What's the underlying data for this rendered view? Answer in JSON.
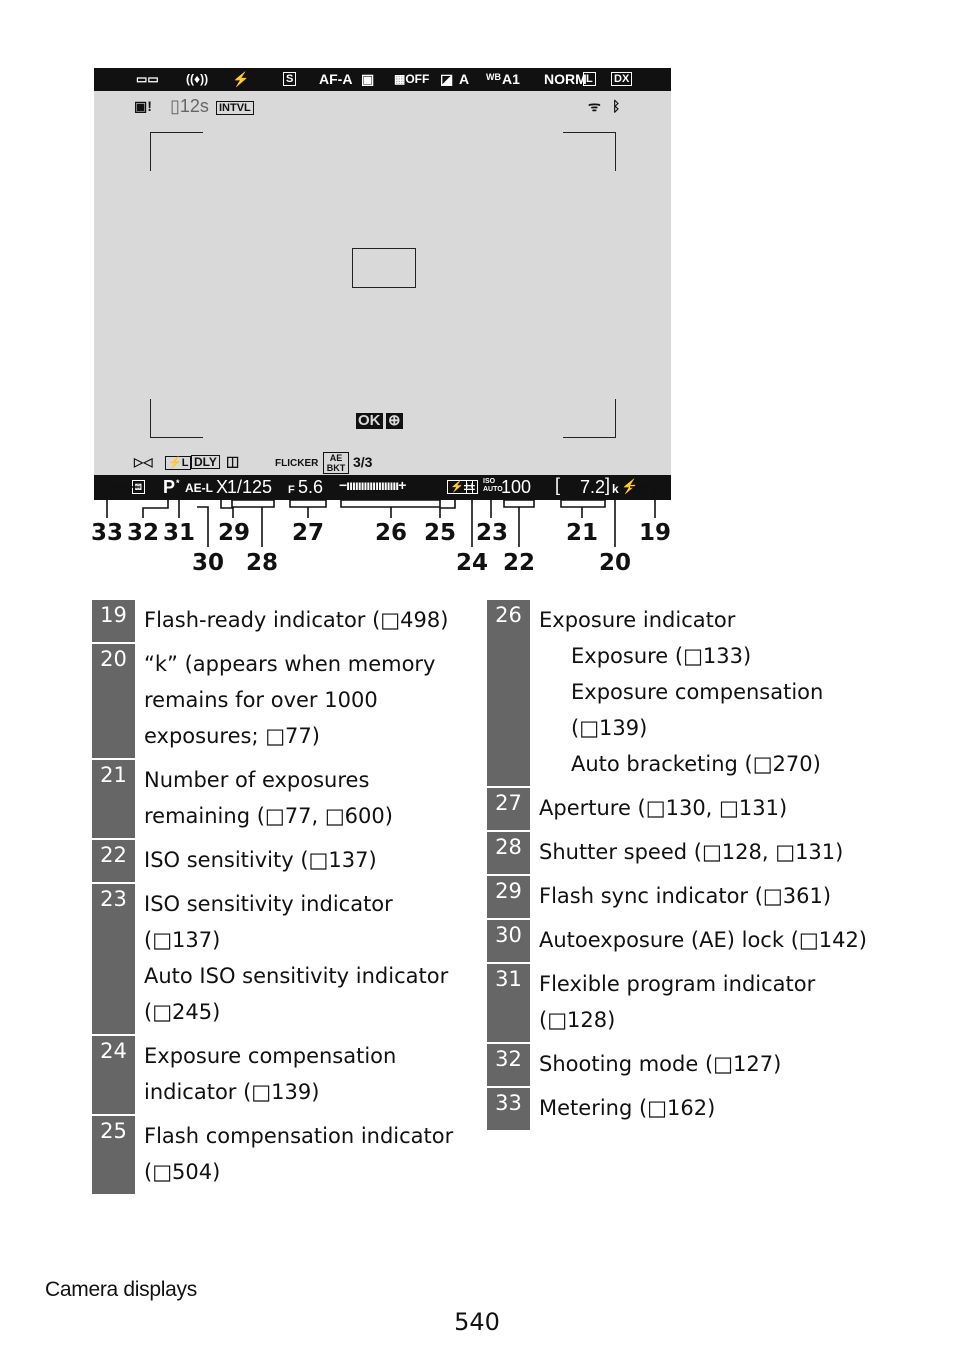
{
  "viewfinder": {
    "top_indicators": [
      "S",
      "AF-A",
      "A",
      "A1",
      "NORM",
      "DX"
    ],
    "second_row": {
      "timer": "12s",
      "intvl": "INTVL"
    },
    "center_button": "OK",
    "lower_row": {
      "dly": "DLY",
      "flicker": "FLICKER",
      "ae_bkt": "AE BKT",
      "bkt_count": "3/3"
    },
    "bottom_bar": {
      "mode": "P",
      "ae_lock": "AE-L",
      "sync": "X",
      "shutter": "1/125",
      "aperture_prefix": "F",
      "aperture": "5.6",
      "iso_label": "ISO AUTO",
      "iso": "100",
      "exposures": "7.2",
      "k": "k"
    }
  },
  "callouts": {
    "row1": [
      "33",
      "32",
      "31",
      "29",
      "27",
      "26",
      "25",
      "23",
      "21",
      "19"
    ],
    "row2": [
      "30",
      "28",
      "24",
      "22",
      "20"
    ]
  },
  "legend_left": [
    {
      "num": "19",
      "lines": [
        "Flash-ready indicator (□498)"
      ]
    },
    {
      "num": "20",
      "lines": [
        "“k” (appears when memory",
        "remains for over 1000",
        "exposures; □77)"
      ]
    },
    {
      "num": "21",
      "lines": [
        "Number of exposures",
        "remaining (□77, □600)"
      ]
    },
    {
      "num": "22",
      "lines": [
        "ISO sensitivity (□137)"
      ]
    },
    {
      "num": "23",
      "lines": [
        "ISO sensitivity indicator (□137)",
        "Auto ISO sensitivity indicator",
        "(□245)"
      ]
    },
    {
      "num": "24",
      "lines": [
        "Exposure compensation",
        "indicator (□139)"
      ]
    },
    {
      "num": "25",
      "lines": [
        "Flash compensation indicator",
        "(□504)"
      ]
    }
  ],
  "legend_right_first": {
    "num": "26",
    "title": "Exposure indicator",
    "subs": [
      "Exposure (□133)",
      "Exposure compensation",
      "(□139)",
      "Auto bracketing (□270)"
    ]
  },
  "legend_right": [
    {
      "num": "27",
      "lines": [
        "Aperture (□130, □131)"
      ]
    },
    {
      "num": "28",
      "lines": [
        "Shutter speed (□128, □131)"
      ]
    },
    {
      "num": "29",
      "lines": [
        "Flash sync indicator (□361)"
      ]
    },
    {
      "num": "30",
      "lines": [
        "Autoexposure (AE) lock (□142)"
      ]
    },
    {
      "num": "31",
      "lines": [
        "Flexible program indicator",
        "(□128)"
      ]
    },
    {
      "num": "32",
      "lines": [
        "Shooting mode (□127)"
      ]
    },
    {
      "num": "33",
      "lines": [
        "Metering (□162)"
      ]
    }
  ],
  "footer": {
    "section": "Camera displays",
    "page": "540"
  }
}
